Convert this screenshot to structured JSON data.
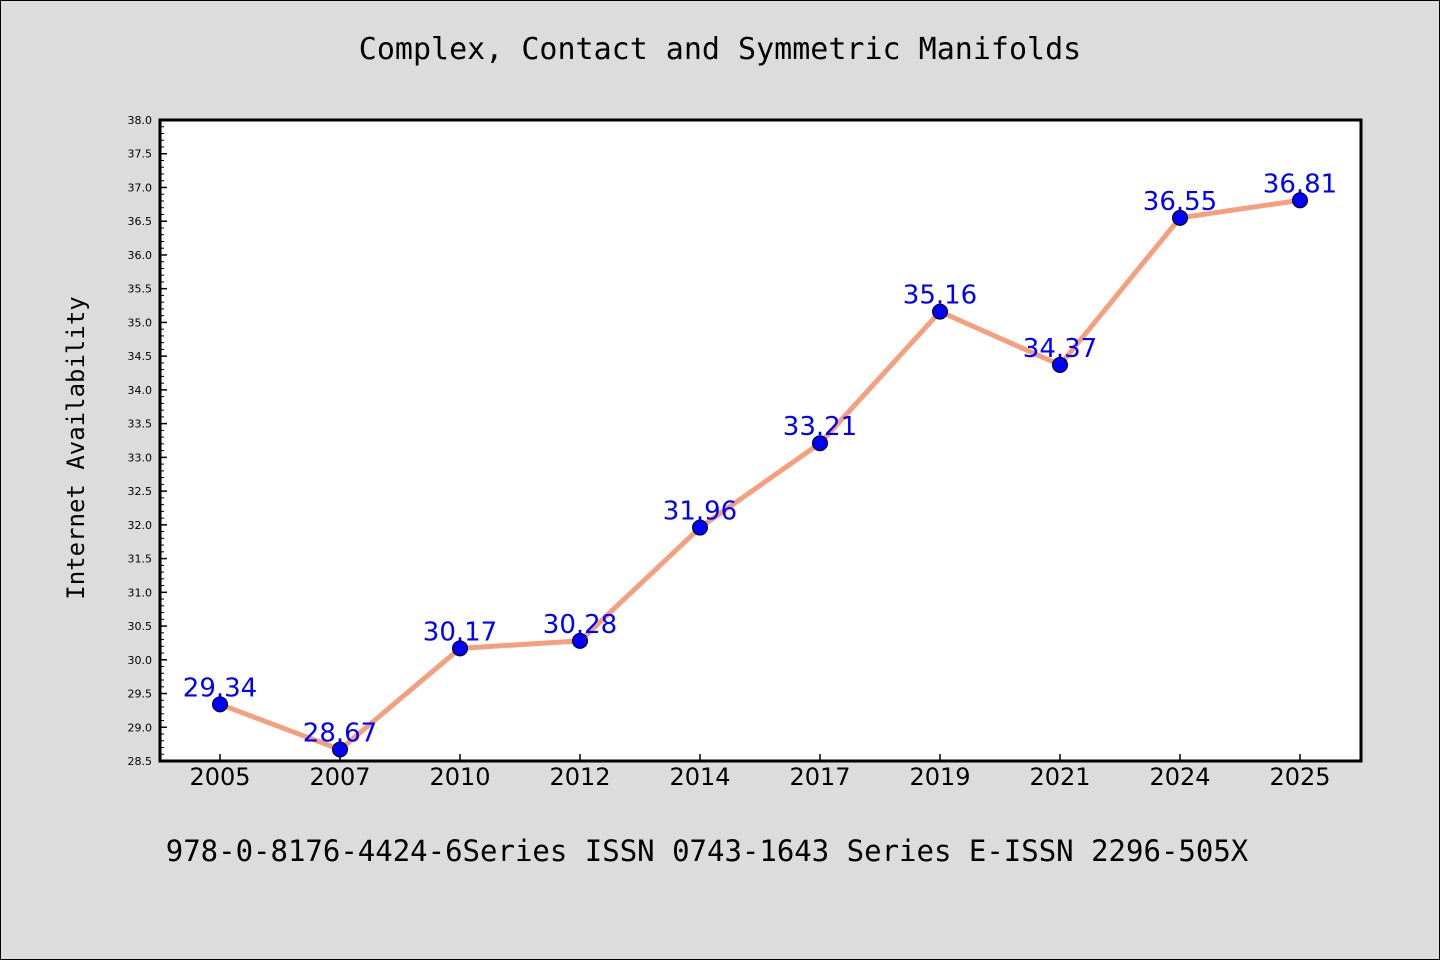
{
  "chart_data": {
    "type": "line",
    "title": "Complex, Contact and Symmetric Manifolds",
    "xlabel": "",
    "ylabel": "Internet Availability",
    "categories": [
      "2005",
      "2007",
      "2010",
      "2012",
      "2014",
      "2017",
      "2019",
      "2021",
      "2024",
      "2025"
    ],
    "series": [
      {
        "values": [
          29.34,
          28.67,
          30.17,
          30.28,
          31.96,
          33.21,
          35.16,
          34.37,
          36.55,
          36.81
        ],
        "data_labels": [
          "29.34",
          "28.67",
          "30.17",
          "30.28",
          "31.96",
          "33.21",
          "35.16",
          "34.37",
          "36.55",
          "36.81"
        ]
      }
    ],
    "ylim": [
      28.5,
      38.0
    ],
    "yticks": [
      "28.5",
      "29.0",
      "29.5",
      "30.0",
      "30.5",
      "31.0",
      "31.5",
      "32.0",
      "32.5",
      "33.0",
      "33.5",
      "34.0",
      "34.5",
      "35.0",
      "35.5",
      "36.0",
      "36.5",
      "37.0",
      "37.5",
      "38.0"
    ],
    "grid": false,
    "legend": "none",
    "colors": {
      "line": "#f4a07f",
      "marker": "#0000ff",
      "label": "#0000ff",
      "background": "#dcdcdc",
      "plot_background": "#ffffff"
    }
  },
  "footer": "978-0-8176-4424-6Series ISSN 0743-1643 Series E-ISSN 2296-505X"
}
